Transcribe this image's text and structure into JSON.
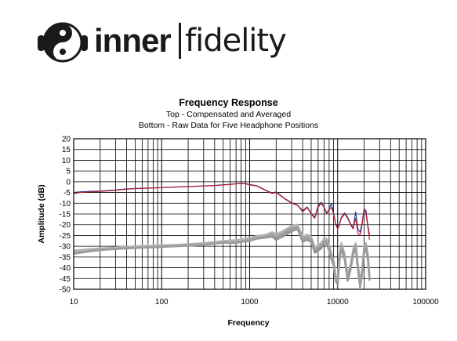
{
  "brand": {
    "name_bold": "inner",
    "name_light": "fidelity",
    "logo_icon": "yin-yang-headphones-icon"
  },
  "chart_data": {
    "type": "line",
    "title": "Frequency Response",
    "subtitle_1": "Top -  Compensated and Averaged",
    "subtitle_2": "Bottom - Raw Data for Five Headphone Positions",
    "xlabel": "Frequency",
    "ylabel": "Amplitude (dB)",
    "x_scale": "log",
    "xlim": [
      10,
      100000
    ],
    "ylim": [
      -50,
      20
    ],
    "x_ticks": [
      "10",
      "100",
      "1000",
      "10000",
      "100000"
    ],
    "y_ticks": [
      "20",
      "15",
      "10",
      "5",
      "0",
      "-5",
      "-10",
      "-15",
      "-20",
      "-25",
      "-30",
      "-35",
      "-40",
      "-45",
      "-50"
    ],
    "grid": true,
    "legend": "none",
    "series": [
      {
        "color": "#c81e2a",
        "x": [
          10,
          12,
          15,
          20,
          30,
          40,
          50,
          70,
          100,
          150,
          200,
          300,
          400,
          500,
          600,
          700,
          800,
          900,
          1000,
          1200,
          1500,
          1800,
          2000,
          2500,
          3000,
          3500,
          4000,
          4500,
          5000,
          5500,
          6000,
          6500,
          7000,
          7500,
          8000,
          8500,
          9000,
          9500,
          10000,
          10500,
          11000,
          12000,
          13000,
          14000,
          15000,
          16000,
          17000,
          18000,
          19000,
          20000,
          21000,
          22000,
          23000
        ],
        "y": [
          -5.5,
          -5,
          -4.8,
          -4.5,
          -4,
          -3.5,
          -3.2,
          -3,
          -2.8,
          -2.5,
          -2.3,
          -2,
          -1.8,
          -1.5,
          -1.3,
          -1,
          -0.8,
          -1,
          -1.5,
          -2,
          -4,
          -5.5,
          -5,
          -8,
          -10,
          -11,
          -14,
          -12,
          -15,
          -17,
          -12,
          -10,
          -12,
          -15,
          -13,
          -12,
          -15,
          -20,
          -22,
          -20,
          -17,
          -15,
          -17,
          -20,
          -22,
          -17,
          -24,
          -25,
          -20,
          -13,
          -15,
          -21,
          -27
        ]
      },
      {
        "color": "#1a2a8c",
        "x": [
          10,
          12,
          15,
          20,
          30,
          40,
          50,
          70,
          100,
          150,
          200,
          300,
          400,
          500,
          600,
          700,
          800,
          900,
          1000,
          1200,
          1500,
          1800,
          2000,
          2500,
          3000,
          3500,
          4000,
          4500,
          5000,
          5500,
          6000,
          6500,
          7000,
          7500,
          8000,
          8500,
          9000,
          9500,
          10000,
          10500,
          11000,
          12000,
          13000,
          14000,
          15000,
          16000,
          17000,
          18000,
          19000,
          20000,
          21000,
          22000,
          23000
        ],
        "y": [
          -5,
          -4.7,
          -4.5,
          -4.3,
          -3.8,
          -3.3,
          -3.1,
          -2.9,
          -2.7,
          -2.4,
          -2.2,
          -1.9,
          -1.7,
          -1.4,
          -1.2,
          -0.9,
          -0.6,
          -0.8,
          -1.3,
          -1.8,
          -3.8,
          -5.3,
          -4.7,
          -7.8,
          -9.7,
          -10.8,
          -13.5,
          -11.7,
          -14.7,
          -16.5,
          -11.2,
          -9.5,
          -11.7,
          -14.5,
          -12.7,
          -10,
          -14.5,
          -19.5,
          -21.5,
          -19.5,
          -16.5,
          -14.5,
          -16.5,
          -19.5,
          -21.5,
          -14,
          -22,
          -23.5,
          -19,
          -12.5,
          -13.5,
          -20,
          -25
        ]
      },
      {
        "color": "#9a9a9a",
        "x": [
          10,
          12,
          15,
          20,
          30,
          40,
          50,
          70,
          100,
          150,
          200,
          300,
          400,
          500,
          700,
          800,
          1000,
          1200,
          1500,
          1800,
          2000,
          2500,
          3000,
          3500,
          4000,
          4500,
          5000,
          5500,
          6000,
          6500,
          7000,
          7500,
          8000,
          8500,
          9000,
          9500,
          10000,
          10500,
          11000,
          12000,
          13000,
          14000,
          15000,
          16000,
          17000,
          18000,
          19000,
          20000,
          21000,
          22000,
          23000
        ],
        "y": [
          -33,
          -32.5,
          -32,
          -31.5,
          -31,
          -30.8,
          -30.5,
          -30.3,
          -30,
          -29.8,
          -29.5,
          -29,
          -28.5,
          -28,
          -28,
          -27.5,
          -27,
          -26,
          -25.5,
          -25,
          -26,
          -24,
          -22,
          -21,
          -27,
          -26,
          -27,
          -32,
          -31,
          -30,
          -28,
          -28,
          -31,
          -35,
          -38,
          -45,
          -47,
          -36,
          -30,
          -35,
          -45,
          -40,
          -33,
          -30,
          -40,
          -48,
          -42,
          -32,
          -30,
          -35,
          -45
        ]
      },
      {
        "color": "#a8a8a8",
        "x": [
          10,
          12,
          15,
          20,
          30,
          40,
          50,
          70,
          100,
          150,
          200,
          300,
          400,
          500,
          700,
          800,
          1000,
          1200,
          1500,
          1800,
          2000,
          2500,
          3000,
          3500,
          4000,
          4500,
          5000,
          5500,
          6000,
          6500,
          7000,
          7500,
          8000,
          8500,
          9000,
          9500,
          10000,
          10500,
          11000,
          12000,
          13000,
          14000,
          15000,
          16000,
          17000,
          18000,
          19000,
          20000,
          21000,
          22000,
          23000
        ],
        "y": [
          -32.5,
          -32,
          -31.6,
          -31.2,
          -30.7,
          -30.5,
          -30.2,
          -30,
          -29.7,
          -29.5,
          -29.2,
          -28.7,
          -28.2,
          -27.7,
          -27.5,
          -27,
          -26.5,
          -25.5,
          -25,
          -24,
          -25,
          -23,
          -21,
          -20.5,
          -26,
          -25,
          -26,
          -31,
          -30,
          -29,
          -27,
          -27,
          -30,
          -34,
          -37,
          -44,
          -46,
          -35,
          -29,
          -34,
          -44,
          -39,
          -32,
          -29,
          -39,
          -47,
          -41,
          -31,
          -29,
          -34,
          -44
        ]
      },
      {
        "color": "#909090",
        "x": [
          10,
          12,
          15,
          20,
          30,
          40,
          50,
          70,
          100,
          150,
          200,
          300,
          400,
          500,
          700,
          800,
          1000,
          1200,
          1500,
          1800,
          2000,
          2500,
          3000,
          3500,
          4000,
          4500,
          5000,
          5500,
          6000,
          6500,
          7000,
          7500,
          8000,
          8500,
          9000,
          9500,
          10000,
          10500,
          11000,
          12000,
          13000,
          14000,
          15000,
          16000,
          17000,
          18000,
          19000,
          20000,
          21000,
          22000,
          23000
        ],
        "y": [
          -33.5,
          -33,
          -32.4,
          -31.8,
          -31.3,
          -31,
          -30.8,
          -30.6,
          -30.3,
          -30,
          -29.8,
          -29.3,
          -28.8,
          -28.3,
          -28.5,
          -28,
          -27.5,
          -26.5,
          -26,
          -25.5,
          -27,
          -25,
          -23,
          -22,
          -28,
          -27,
          -28,
          -33,
          -32,
          -31,
          -29,
          -29,
          -32,
          -36,
          -39,
          -46,
          -48,
          -37,
          -31,
          -36,
          -46,
          -41,
          -34,
          -31,
          -41,
          -49,
          -43,
          -33,
          -31,
          -36,
          -46
        ]
      },
      {
        "color": "#b4b4b4",
        "x": [
          10,
          12,
          15,
          20,
          30,
          40,
          50,
          70,
          100,
          150,
          200,
          300,
          400,
          500,
          700,
          800,
          1000,
          1200,
          1500,
          1800,
          2000,
          2500,
          3000,
          3500,
          4000,
          4500,
          5000,
          5500,
          6000,
          6500,
          7000,
          7500,
          8000,
          8500,
          9000,
          9500,
          10000,
          10500,
          11000,
          12000,
          13000,
          14000,
          15000,
          16000,
          17000,
          18000,
          19000,
          20000,
          21000,
          22000,
          23000
        ],
        "y": [
          -32,
          -31.7,
          -31.3,
          -31,
          -30.5,
          -30.3,
          -30,
          -29.8,
          -29.5,
          -29.3,
          -29,
          -28.5,
          -28,
          -27.5,
          -27.2,
          -26.8,
          -26.2,
          -25.2,
          -24.7,
          -23.5,
          -24.5,
          -22.5,
          -20.5,
          -20,
          -25.5,
          -24.5,
          -25.5,
          -30.5,
          -29.5,
          -28.5,
          -26.5,
          -26.5,
          -29.5,
          -33.5,
          -36.5,
          -43.5,
          -45.5,
          -34.5,
          -28.5,
          -33.5,
          -43.5,
          -38.5,
          -31.5,
          -28.5,
          -38.5,
          -46.5,
          -40.5,
          -30.5,
          -28.5,
          -33.5,
          -43.5
        ]
      },
      {
        "color": "#9e9e9e",
        "x": [
          10,
          12,
          15,
          20,
          30,
          40,
          50,
          70,
          100,
          150,
          200,
          300,
          400,
          500,
          700,
          800,
          1000,
          1200,
          1500,
          1800,
          2000,
          2500,
          3000,
          3500,
          4000,
          4500,
          5000,
          5500,
          6000,
          6500,
          7000,
          7500,
          8000,
          8500,
          9000,
          9500,
          10000,
          10500,
          11000,
          12000,
          13000,
          14000,
          15000,
          16000,
          17000,
          18000,
          19000,
          20000,
          21000,
          22000,
          23000
        ],
        "y": [
          -33.2,
          -32.8,
          -32.2,
          -31.6,
          -31.1,
          -30.9,
          -30.6,
          -30.4,
          -30.1,
          -29.9,
          -29.6,
          -29.1,
          -28.6,
          -28.1,
          -28.2,
          -27.7,
          -27.2,
          -26.2,
          -25.7,
          -24.7,
          -25.7,
          -23.7,
          -21.7,
          -21.2,
          -26.7,
          -25.7,
          -26.7,
          -31.7,
          -30.7,
          -29.7,
          -27.7,
          -27.7,
          -30.7,
          -34.7,
          -37.7,
          -44.7,
          -46.7,
          -35.7,
          -29.7,
          -34.7,
          -44.7,
          -39.7,
          -32.7,
          -29.7,
          -39.7,
          -47.7,
          -41.7,
          -31.7,
          -29.7,
          -34.7,
          -44.7
        ]
      }
    ]
  }
}
